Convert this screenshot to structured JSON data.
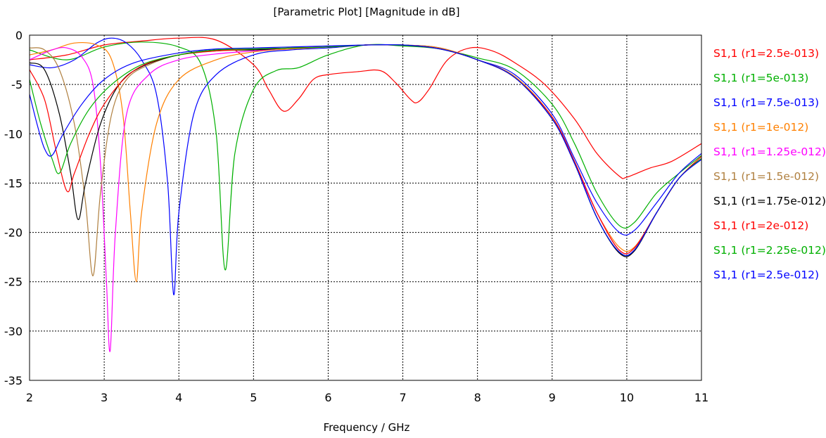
{
  "chart_data": {
    "type": "line",
    "title": "[Parametric Plot] [Magnitude in dB]",
    "xlabel": "Frequency / GHz",
    "ylabel": "",
    "xlim": [
      2,
      11
    ],
    "ylim": [
      -35,
      0
    ],
    "xticks": [
      2,
      3,
      4,
      5,
      6,
      7,
      8,
      9,
      10,
      11
    ],
    "yticks": [
      0,
      -5,
      -10,
      -15,
      -20,
      -25,
      -30,
      -35
    ],
    "grid": true,
    "legend_position": "right",
    "series": [
      {
        "name": "S1,1 (r1=2.5e-013)",
        "color": "#ff0000",
        "points": [
          [
            2,
            -2.5
          ],
          [
            2.5,
            -2.0
          ],
          [
            3,
            -1.0
          ],
          [
            3.5,
            -0.6
          ],
          [
            4,
            -0.3
          ],
          [
            4.5,
            -0.5
          ],
          [
            5,
            -3.0
          ],
          [
            5.2,
            -5.5
          ],
          [
            5.4,
            -7.7
          ],
          [
            5.6,
            -6.5
          ],
          [
            5.8,
            -4.5
          ],
          [
            6,
            -4.0
          ],
          [
            6.4,
            -3.7
          ],
          [
            6.7,
            -3.6
          ],
          [
            6.9,
            -4.8
          ],
          [
            7.1,
            -6.5
          ],
          [
            7.2,
            -6.8
          ],
          [
            7.35,
            -5.5
          ],
          [
            7.6,
            -2.5
          ],
          [
            7.9,
            -1.3
          ],
          [
            8.2,
            -1.6
          ],
          [
            8.5,
            -2.8
          ],
          [
            8.9,
            -5.0
          ],
          [
            9.3,
            -8.5
          ],
          [
            9.6,
            -12.0
          ],
          [
            9.9,
            -14.3
          ],
          [
            10.0,
            -14.4
          ],
          [
            10.3,
            -13.5
          ],
          [
            10.6,
            -12.8
          ],
          [
            11,
            -11.0
          ]
        ]
      },
      {
        "name": "S1,1 (r1=5e-013)",
        "color": "#00b000",
        "points": [
          [
            2,
            -1.5
          ],
          [
            2.5,
            -2.5
          ],
          [
            3,
            -1.2
          ],
          [
            3.5,
            -0.7
          ],
          [
            4,
            -1.2
          ],
          [
            4.3,
            -3.0
          ],
          [
            4.5,
            -10.0
          ],
          [
            4.62,
            -23.8
          ],
          [
            4.75,
            -12.0
          ],
          [
            5,
            -5.5
          ],
          [
            5.3,
            -3.6
          ],
          [
            5.6,
            -3.3
          ],
          [
            6,
            -2.0
          ],
          [
            6.5,
            -1.0
          ],
          [
            7,
            -1.1
          ],
          [
            7.5,
            -1.4
          ],
          [
            8,
            -2.3
          ],
          [
            8.5,
            -3.5
          ],
          [
            9,
            -7.0
          ],
          [
            9.3,
            -11.0
          ],
          [
            9.6,
            -16.0
          ],
          [
            9.9,
            -19.3
          ],
          [
            10.1,
            -19.0
          ],
          [
            10.4,
            -16.0
          ],
          [
            10.7,
            -14.0
          ],
          [
            11,
            -12.2
          ]
        ]
      },
      {
        "name": "S1,1 (r1=7.5e-013)",
        "color": "#0000ff",
        "points": [
          [
            2,
            -3.0
          ],
          [
            2.3,
            -3.3
          ],
          [
            2.6,
            -2.5
          ],
          [
            2.9,
            -0.8
          ],
          [
            3.1,
            -0.3
          ],
          [
            3.3,
            -0.8
          ],
          [
            3.5,
            -2.5
          ],
          [
            3.7,
            -6.0
          ],
          [
            3.85,
            -15.0
          ],
          [
            3.93,
            -26.3
          ],
          [
            4.0,
            -18.0
          ],
          [
            4.2,
            -8.0
          ],
          [
            4.5,
            -4.0
          ],
          [
            5,
            -2.0
          ],
          [
            5.5,
            -1.5
          ],
          [
            6,
            -1.3
          ],
          [
            6.5,
            -1.0
          ],
          [
            7,
            -1.0
          ],
          [
            7.5,
            -1.3
          ],
          [
            8,
            -2.5
          ],
          [
            8.5,
            -4.0
          ],
          [
            9,
            -8.0
          ],
          [
            9.3,
            -12.5
          ],
          [
            9.6,
            -17.0
          ],
          [
            9.9,
            -20.0
          ],
          [
            10.1,
            -19.8
          ],
          [
            10.4,
            -17.0
          ],
          [
            10.7,
            -14.0
          ],
          [
            11,
            -12.0
          ]
        ]
      },
      {
        "name": "S1,1 (r1=1e-012)",
        "color": "#ff8000",
        "points": [
          [
            2,
            -2.0
          ],
          [
            2.3,
            -1.5
          ],
          [
            2.6,
            -0.8
          ],
          [
            2.9,
            -1.0
          ],
          [
            3.1,
            -2.5
          ],
          [
            3.25,
            -8.0
          ],
          [
            3.35,
            -18.0
          ],
          [
            3.43,
            -25.0
          ],
          [
            3.5,
            -18.0
          ],
          [
            3.7,
            -9.0
          ],
          [
            4,
            -4.5
          ],
          [
            4.5,
            -2.5
          ],
          [
            5,
            -1.7
          ],
          [
            5.5,
            -1.4
          ],
          [
            6,
            -1.2
          ],
          [
            6.5,
            -1.0
          ],
          [
            7,
            -1.0
          ],
          [
            7.5,
            -1.3
          ],
          [
            8,
            -2.5
          ],
          [
            8.5,
            -4.2
          ],
          [
            9,
            -8.3
          ],
          [
            9.3,
            -13.0
          ],
          [
            9.6,
            -18.0
          ],
          [
            9.9,
            -21.5
          ],
          [
            10.1,
            -21.5
          ],
          [
            10.4,
            -18.0
          ],
          [
            10.7,
            -14.5
          ],
          [
            11,
            -12.5
          ]
        ]
      },
      {
        "name": "S1,1 (r1=1.25e-012)",
        "color": "#ff00ff",
        "points": [
          [
            2,
            -2.5
          ],
          [
            2.3,
            -1.5
          ],
          [
            2.5,
            -1.3
          ],
          [
            2.7,
            -2.2
          ],
          [
            2.85,
            -5.0
          ],
          [
            2.95,
            -13.0
          ],
          [
            3.03,
            -25.0
          ],
          [
            3.08,
            -32.0
          ],
          [
            3.15,
            -20.0
          ],
          [
            3.3,
            -8.0
          ],
          [
            3.6,
            -4.0
          ],
          [
            4,
            -2.5
          ],
          [
            4.5,
            -1.9
          ],
          [
            5,
            -1.6
          ],
          [
            5.5,
            -1.3
          ],
          [
            6,
            -1.2
          ],
          [
            6.5,
            -1.0
          ],
          [
            7,
            -1.0
          ],
          [
            7.5,
            -1.4
          ],
          [
            8,
            -2.5
          ],
          [
            8.5,
            -4.3
          ],
          [
            9,
            -8.5
          ],
          [
            9.3,
            -13.0
          ],
          [
            9.6,
            -18.0
          ],
          [
            9.9,
            -21.8
          ],
          [
            10.1,
            -21.6
          ],
          [
            10.4,
            -18.0
          ],
          [
            10.7,
            -14.5
          ],
          [
            11,
            -12.5
          ]
        ]
      },
      {
        "name": "S1,1 (r1=1.5e-012)",
        "color": "#b08040",
        "points": [
          [
            2,
            -1.3
          ],
          [
            2.2,
            -1.5
          ],
          [
            2.4,
            -3.5
          ],
          [
            2.6,
            -9.0
          ],
          [
            2.75,
            -17.0
          ],
          [
            2.85,
            -24.4
          ],
          [
            2.95,
            -16.0
          ],
          [
            3.1,
            -8.0
          ],
          [
            3.3,
            -4.5
          ],
          [
            3.6,
            -3.0
          ],
          [
            4,
            -2.0
          ],
          [
            4.5,
            -1.6
          ],
          [
            5,
            -1.5
          ],
          [
            5.5,
            -1.3
          ],
          [
            6,
            -1.2
          ],
          [
            6.5,
            -1.0
          ],
          [
            7,
            -1.0
          ],
          [
            7.5,
            -1.4
          ],
          [
            8,
            -2.5
          ],
          [
            8.5,
            -4.3
          ],
          [
            9,
            -8.5
          ],
          [
            9.3,
            -13.0
          ],
          [
            9.6,
            -18.5
          ],
          [
            9.9,
            -22.0
          ],
          [
            10.1,
            -21.8
          ],
          [
            10.4,
            -18.0
          ],
          [
            10.7,
            -14.5
          ],
          [
            11,
            -12.5
          ]
        ]
      },
      {
        "name": "S1,1 (r1=1.75e-012)",
        "color": "#000000",
        "points": [
          [
            2,
            -2.8
          ],
          [
            2.2,
            -3.5
          ],
          [
            2.4,
            -8.0
          ],
          [
            2.55,
            -14.0
          ],
          [
            2.65,
            -18.7
          ],
          [
            2.75,
            -15.0
          ],
          [
            2.95,
            -9.0
          ],
          [
            3.2,
            -5.0
          ],
          [
            3.5,
            -3.2
          ],
          [
            4,
            -2.0
          ],
          [
            4.5,
            -1.5
          ],
          [
            5,
            -1.5
          ],
          [
            5.5,
            -1.3
          ],
          [
            6,
            -1.2
          ],
          [
            6.5,
            -1.0
          ],
          [
            7,
            -1.0
          ],
          [
            7.5,
            -1.4
          ],
          [
            8,
            -2.5
          ],
          [
            8.5,
            -4.3
          ],
          [
            9,
            -8.5
          ],
          [
            9.3,
            -13.0
          ],
          [
            9.6,
            -18.5
          ],
          [
            9.9,
            -22.1
          ],
          [
            10.1,
            -21.9
          ],
          [
            10.4,
            -18.0
          ],
          [
            10.7,
            -14.5
          ],
          [
            11,
            -12.5
          ]
        ]
      },
      {
        "name": "S1,1 (r1=2e-012)",
        "color": "#ff0000",
        "points": [
          [
            2,
            -3.5
          ],
          [
            2.2,
            -6.5
          ],
          [
            2.35,
            -11.5
          ],
          [
            2.5,
            -15.8
          ],
          [
            2.6,
            -14.0
          ],
          [
            2.8,
            -10.0
          ],
          [
            3,
            -7.0
          ],
          [
            3.3,
            -4.2
          ],
          [
            3.6,
            -2.8
          ],
          [
            4,
            -2.0
          ],
          [
            4.5,
            -1.6
          ],
          [
            5,
            -1.4
          ],
          [
            5.5,
            -1.3
          ],
          [
            6,
            -1.2
          ],
          [
            6.5,
            -1.0
          ],
          [
            7,
            -1.0
          ],
          [
            7.5,
            -1.4
          ],
          [
            8,
            -2.5
          ],
          [
            8.5,
            -4.3
          ],
          [
            9,
            -8.3
          ],
          [
            9.3,
            -12.8
          ],
          [
            9.6,
            -18.0
          ],
          [
            9.9,
            -21.8
          ],
          [
            10.1,
            -21.6
          ],
          [
            10.4,
            -18.0
          ],
          [
            10.7,
            -14.5
          ],
          [
            11,
            -12.3
          ]
        ]
      },
      {
        "name": "S1,1 (r1=2.25e-012)",
        "color": "#00b000",
        "points": [
          [
            2,
            -4.5
          ],
          [
            2.15,
            -9.0
          ],
          [
            2.3,
            -12.5
          ],
          [
            2.4,
            -14.0
          ],
          [
            2.55,
            -11.0
          ],
          [
            2.8,
            -7.5
          ],
          [
            3.1,
            -5.0
          ],
          [
            3.5,
            -3.0
          ],
          [
            4,
            -2.0
          ],
          [
            4.5,
            -1.5
          ],
          [
            5,
            -1.4
          ],
          [
            5.5,
            -1.3
          ],
          [
            6,
            -1.2
          ],
          [
            6.5,
            -1.0
          ],
          [
            7,
            -1.0
          ],
          [
            7.5,
            -1.4
          ],
          [
            8,
            -2.5
          ],
          [
            8.5,
            -4.3
          ],
          [
            9,
            -8.5
          ],
          [
            9.3,
            -13.0
          ],
          [
            9.6,
            -18.5
          ],
          [
            9.9,
            -22.0
          ],
          [
            10.1,
            -21.8
          ],
          [
            10.4,
            -18.0
          ],
          [
            10.7,
            -14.5
          ],
          [
            11,
            -12.5
          ]
        ]
      },
      {
        "name": "S1,1 (r1=2.5e-012)",
        "color": "#0000ff",
        "points": [
          [
            2,
            -6.0
          ],
          [
            2.1,
            -9.0
          ],
          [
            2.2,
            -11.5
          ],
          [
            2.3,
            -12.2
          ],
          [
            2.45,
            -10.0
          ],
          [
            2.7,
            -7.0
          ],
          [
            3,
            -4.5
          ],
          [
            3.4,
            -2.8
          ],
          [
            4,
            -1.8
          ],
          [
            4.5,
            -1.4
          ],
          [
            5,
            -1.3
          ],
          [
            5.5,
            -1.2
          ],
          [
            6,
            -1.1
          ],
          [
            6.5,
            -1.0
          ],
          [
            7,
            -1.0
          ],
          [
            7.5,
            -1.4
          ],
          [
            8,
            -2.5
          ],
          [
            8.5,
            -4.3
          ],
          [
            9,
            -8.5
          ],
          [
            9.3,
            -13.0
          ],
          [
            9.6,
            -18.5
          ],
          [
            9.9,
            -22.0
          ],
          [
            10.1,
            -21.8
          ],
          [
            10.4,
            -18.0
          ],
          [
            10.7,
            -14.5
          ],
          [
            11,
            -12.6
          ]
        ]
      }
    ]
  }
}
